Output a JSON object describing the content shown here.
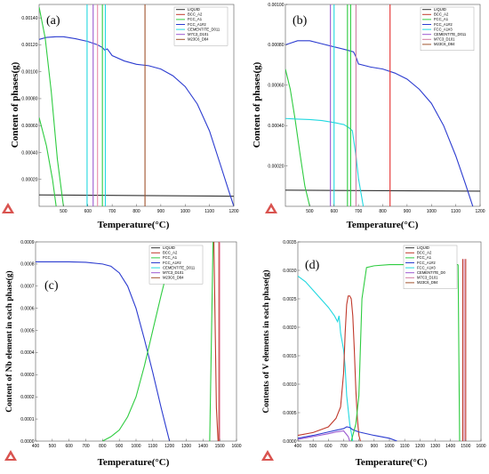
{
  "figure": {
    "background": "#ffffff"
  },
  "chart_data": [
    {
      "id": "a",
      "type": "line",
      "panel_label": "(a)",
      "xlabel": "Temperature(°C)",
      "ylabel": "Content of phases(g)",
      "xlim": [
        400,
        1200
      ],
      "ylim": [
        0,
        0.0015
      ],
      "xticks": [
        "500",
        "600",
        "700",
        "800",
        "900",
        "1000",
        "1100",
        "1200"
      ],
      "xtick_values": [
        500,
        600,
        700,
        800,
        900,
        1000,
        1100,
        1200
      ],
      "yticks": [
        "0.00020",
        "0.00040",
        "0.00060",
        "0.00080",
        "0.00100",
        "0.00120",
        "0.00140"
      ],
      "ytick_values": [
        0.0002,
        0.0004,
        0.0006,
        0.0008,
        0.001,
        0.0012,
        0.0014
      ],
      "legend": [
        {
          "name": "LIQUID",
          "color": "#333333"
        },
        {
          "name": "BCC_A2",
          "color": "#c0392b"
        },
        {
          "name": "FCC_A1",
          "color": "#2ecc40"
        },
        {
          "name": "FCC_A1#2",
          "color": "#2c3cd0"
        },
        {
          "name": "CEMENTITE_D011",
          "color": "#22d8e0"
        },
        {
          "name": "M7C3_D101",
          "color": "#9b59d0"
        },
        {
          "name": "M23C6_D84",
          "color": "#a0522d"
        }
      ],
      "series": [
        {
          "color": "#333333",
          "x": [
            400,
            1200
          ],
          "y": [
            8.5e-05,
            7.5e-05
          ]
        },
        {
          "color": "#2c3cd0",
          "x": [
            400,
            430,
            470,
            500,
            550,
            600,
            640,
            660,
            670,
            680,
            700,
            750,
            800,
            850,
            900,
            950,
            1000,
            1050,
            1100,
            1150,
            1180,
            1200
          ],
          "y": [
            0.00124,
            0.001255,
            0.00126,
            0.00126,
            0.001245,
            0.001225,
            0.0012,
            0.00118,
            0.00116,
            0.00117,
            0.00112,
            0.00108,
            0.001055,
            0.001045,
            0.00102,
            0.00097,
            0.00089,
            0.00076,
            0.00056,
            0.00028,
            0.00011,
            0.0
          ]
        },
        {
          "color": "#2ecc40",
          "x": [
            400,
            425,
            450,
            475,
            500
          ],
          "y": [
            0.00148,
            0.00125,
            0.00085,
            0.00035,
            0.0
          ]
        },
        {
          "color": "#2ecc40",
          "x": [
            400,
            430,
            455,
            470
          ],
          "y": [
            0.00066,
            0.00045,
            0.0002,
            0.0
          ]
        },
        {
          "color": "#2ecc40",
          "x": [
            660,
            660
          ],
          "y": [
            0,
            0.0015
          ]
        },
        {
          "color": "#22d8e0",
          "x": [
            597,
            597
          ],
          "y": [
            0,
            0.0015
          ]
        },
        {
          "color": "#22d8e0",
          "x": [
            672,
            672
          ],
          "y": [
            0,
            0.0015
          ]
        },
        {
          "color": "#9b59d0",
          "x": [
            622,
            622
          ],
          "y": [
            0,
            0.0015
          ]
        },
        {
          "color": "#e88aa8",
          "x": [
            640,
            640
          ],
          "y": [
            0,
            0.0015
          ]
        },
        {
          "color": "#a0522d",
          "x": [
            835,
            835
          ],
          "y": [
            0,
            0.0015
          ]
        }
      ]
    },
    {
      "id": "b",
      "type": "line",
      "panel_label": "(b)",
      "xlabel": "Temperature(°C)",
      "ylabel": "Content of phases(g)",
      "xlim": [
        400,
        1200
      ],
      "ylim": [
        0,
        0.001
      ],
      "xticks": [
        "500",
        "600",
        "700",
        "800",
        "900",
        "1000",
        "1100",
        "1200"
      ],
      "xtick_values": [
        500,
        600,
        700,
        800,
        900,
        1000,
        1100,
        1200
      ],
      "yticks": [
        "0.00020",
        "0.00040",
        "0.00060",
        "0.00080",
        "0.00100"
      ],
      "ytick_values": [
        0.0002,
        0.0004,
        0.0006,
        0.0008,
        0.001
      ],
      "legend": [
        {
          "name": "LIQUID",
          "color": "#333333"
        },
        {
          "name": "BCC_A2",
          "color": "#c0392b"
        },
        {
          "name": "FCC_A1",
          "color": "#2ecc40"
        },
        {
          "name": "FCC_A1#2",
          "color": "#2c3cd0"
        },
        {
          "name": "FCC_A1#3",
          "color": "#22d8e0"
        },
        {
          "name": "CEMENTITE_D011",
          "color": "#9b59d0"
        },
        {
          "name": "M7C3_D101",
          "color": "#d07aa0"
        },
        {
          "name": "M23C6_D84",
          "color": "#a0522d"
        }
      ],
      "series": [
        {
          "color": "#333333",
          "x": [
            400,
            1200
          ],
          "y": [
            8e-05,
            7.5e-05
          ]
        },
        {
          "color": "#2c3cd0",
          "x": [
            400,
            450,
            500,
            550,
            600,
            650,
            680,
            690,
            700,
            750,
            800,
            850,
            900,
            950,
            1000,
            1050,
            1100,
            1140,
            1170
          ],
          "y": [
            0.0008,
            0.00082,
            0.00082,
            0.000805,
            0.00079,
            0.000775,
            0.000765,
            0.00074,
            0.000705,
            0.00069,
            0.00068,
            0.00066,
            0.00063,
            0.00058,
            0.00051,
            0.0004,
            0.00025,
            0.00011,
            0.0
          ]
        },
        {
          "color": "#2ecc40",
          "x": [
            400,
            420,
            440,
            460,
            480,
            500
          ],
          "y": [
            0.00068,
            0.00058,
            0.00043,
            0.00026,
            0.0001,
            0.0
          ]
        },
        {
          "color": "#22d8e0",
          "x": [
            400,
            450,
            500,
            550,
            600,
            640,
            660,
            675,
            690,
            700,
            720
          ],
          "y": [
            0.000435,
            0.000432,
            0.00043,
            0.000425,
            0.000415,
            0.000405,
            0.00039,
            0.000375,
            0.00025,
            0.00014,
            0.0
          ]
        },
        {
          "color": "#2ecc40",
          "x": [
            655,
            655
          ],
          "y": [
            0,
            0.001
          ]
        },
        {
          "color": "#2ecc40",
          "x": [
            668,
            668
          ],
          "y": [
            0,
            0.001
          ]
        },
        {
          "color": "#22d8e0",
          "x": [
            600,
            600
          ],
          "y": [
            0,
            0.001
          ]
        },
        {
          "color": "#9b59d0",
          "x": [
            585,
            585
          ],
          "y": [
            0,
            0.001
          ]
        },
        {
          "color": "#d07aa0",
          "x": [
            690,
            690
          ],
          "y": [
            0,
            0.001
          ]
        },
        {
          "color": "#e53030",
          "x": [
            830,
            830
          ],
          "y": [
            0,
            0.001
          ]
        }
      ]
    },
    {
      "id": "c",
      "type": "line",
      "panel_label": "(c)",
      "xlabel": "Temperature(°C)",
      "ylabel": "Content of Nb element in each phase(g)",
      "xlim": [
        400,
        1600
      ],
      "ylim": [
        0,
        0.0009
      ],
      "xticks": [
        "400",
        "500",
        "600",
        "700",
        "800",
        "900",
        "1000",
        "1100",
        "1200",
        "1300",
        "1400",
        "1500",
        "1600"
      ],
      "xtick_values": [
        400,
        500,
        600,
        700,
        800,
        900,
        1000,
        1100,
        1200,
        1300,
        1400,
        1500,
        1600
      ],
      "yticks": [
        "0.0000",
        "0.0001",
        "0.0002",
        "0.0003",
        "0.0004",
        "0.0005",
        "0.0006",
        "0.0007",
        "0.0008",
        "0.0009"
      ],
      "ytick_values": [
        0,
        0.0001,
        0.0002,
        0.0003,
        0.0004,
        0.0005,
        0.0006,
        0.0007,
        0.0008,
        0.0009
      ],
      "legend": [
        {
          "name": "LIQUID",
          "color": "#333333"
        },
        {
          "name": "BCC_A2",
          "color": "#c0392b"
        },
        {
          "name": "FCC_A1",
          "color": "#2ecc40"
        },
        {
          "name": "FCC_A1#2",
          "color": "#2c3cd0"
        },
        {
          "name": "CEMENTITE_D011",
          "color": "#22d8e0"
        },
        {
          "name": "M7C3_D101",
          "color": "#9b59d0"
        },
        {
          "name": "M23C6_D84",
          "color": "#a0522d"
        }
      ],
      "series": [
        {
          "color": "#2c3cd0",
          "x": [
            400,
            500,
            600,
            700,
            800,
            850,
            900,
            950,
            1000,
            1050,
            1100,
            1150,
            1180,
            1200
          ],
          "y": [
            0.00081,
            0.00081,
            0.00081,
            0.000808,
            0.0008,
            0.00079,
            0.00076,
            0.0007,
            0.0006,
            0.00046,
            0.00031,
            0.00015,
            6e-05,
            0.0
          ]
        },
        {
          "color": "#2ecc40",
          "x": [
            800,
            850,
            900,
            950,
            1000,
            1050,
            1100,
            1150,
            1180,
            1200,
            1220,
            1240
          ],
          "y": [
            0.0,
            2e-05,
            5e-05,
            0.00011,
            0.0002,
            0.00034,
            0.0005,
            0.00066,
            0.00075,
            0.0008,
            0.00083,
            0.00086
          ]
        },
        {
          "color": "#2ecc40",
          "x": [
            1440,
            1450,
            1460
          ],
          "y": [
            0.0,
            0.00045,
            0.0009
          ]
        },
        {
          "color": "#c0392b",
          "x": [
            1465,
            1475,
            1480,
            1490
          ],
          "y": [
            0.0009,
            0.0004,
            0.00015,
            0.0
          ]
        },
        {
          "color": "#c0392b",
          "x": [
            1495,
            1495
          ],
          "y": [
            0,
            0.0009
          ]
        },
        {
          "color": "#e88aa8",
          "x": [
            1500,
            1500
          ],
          "y": [
            0,
            0.0009
          ]
        }
      ]
    },
    {
      "id": "d",
      "type": "line",
      "panel_label": "(d)",
      "xlabel": "Temperature(°C)",
      "ylabel": "Contents of V elements in each phase(g)",
      "xlim": [
        400,
        1600
      ],
      "ylim": [
        0,
        0.0035
      ],
      "xticks": [
        "400",
        "500",
        "600",
        "700",
        "800",
        "900",
        "1000",
        "1100",
        "1200",
        "1300",
        "1400",
        "1500",
        "1600"
      ],
      "xtick_values": [
        400,
        500,
        600,
        700,
        800,
        900,
        1000,
        1100,
        1200,
        1300,
        1400,
        1500,
        1600
      ],
      "yticks": [
        "0.0000",
        "0.0005",
        "0.0010",
        "0.0015",
        "0.0020",
        "0.0025",
        "0.0030",
        "0.0035"
      ],
      "ytick_values": [
        0,
        0.0005,
        0.001,
        0.0015,
        0.002,
        0.0025,
        0.003,
        0.0035
      ],
      "legend": [
        {
          "name": "LIQUID",
          "color": "#333333"
        },
        {
          "name": "BCC_A2",
          "color": "#c0392b"
        },
        {
          "name": "FCC_A1",
          "color": "#2ecc40"
        },
        {
          "name": "FCC_A1#2",
          "color": "#2c3cd0"
        },
        {
          "name": "FCC_A1#3",
          "color": "#22d8e0"
        },
        {
          "name": "CEMENTITE_D0",
          "color": "#9b59d0"
        },
        {
          "name": "M7C3_D101",
          "color": "#d07aa0"
        },
        {
          "name": "M23C6_D84",
          "color": "#a0522d"
        }
      ],
      "series": [
        {
          "color": "#22d8e0",
          "x": [
            400,
            450,
            500,
            550,
            600,
            640,
            660,
            670,
            680,
            690,
            700,
            710,
            720,
            740,
            760
          ],
          "y": [
            0.0029,
            0.0028,
            0.00265,
            0.0025,
            0.00235,
            0.0022,
            0.0021,
            0.0022,
            0.0019,
            0.00175,
            0.0016,
            0.0013,
            0.0008,
            0.0003,
            0.0
          ]
        },
        {
          "color": "#c0392b",
          "x": [
            400,
            500,
            600,
            650,
            680,
            700,
            710,
            720,
            730,
            740,
            750,
            760,
            770,
            780,
            790,
            800,
            810
          ],
          "y": [
            0.0001,
            0.00015,
            0.00025,
            0.0004,
            0.0006,
            0.0012,
            0.0019,
            0.0024,
            0.00255,
            0.00255,
            0.0025,
            0.0022,
            0.0016,
            0.0009,
            0.0004,
            0.0001,
            0.0
          ]
        },
        {
          "color": "#2c3cd0",
          "x": [
            400,
            500,
            600,
            650,
            700,
            720,
            740,
            760,
            800,
            900,
            1000,
            1050
          ],
          "y": [
            5e-05,
            0.0001,
            0.00016,
            0.00019,
            0.00022,
            0.00025,
            0.00024,
            0.0002,
            0.00016,
            0.0001,
            5e-05,
            0.0
          ]
        },
        {
          "color": "#9b59d0",
          "x": [
            400,
            500,
            600,
            650,
            700,
            730,
            740
          ],
          "y": [
            3e-05,
            8e-05,
            0.00013,
            0.00016,
            0.00018,
            8e-05,
            0.0
          ]
        },
        {
          "color": "#2ecc40",
          "x": [
            750,
            780,
            800,
            820,
            850,
            900,
            1000,
            1100,
            1200,
            1300,
            1400,
            1450
          ],
          "y": [
            0.0,
            0.0003,
            0.0008,
            0.0025,
            0.00305,
            0.00308,
            0.0031,
            0.0031,
            0.0031,
            0.0031,
            0.0031,
            0.0031
          ]
        },
        {
          "color": "#2ecc40",
          "x": [
            1450,
            1455,
            1460
          ],
          "y": [
            0.0031,
            0.0015,
            0.0
          ]
        },
        {
          "color": "#c0392b",
          "x": [
            1480,
            1480
          ],
          "y": [
            0,
            0.0032
          ]
        },
        {
          "color": "#c0392b",
          "x": [
            1500,
            1500
          ],
          "y": [
            0,
            0.0032
          ]
        },
        {
          "color": "#d07aa0",
          "x": [
            1490,
            1490
          ],
          "y": [
            0,
            0.0032
          ]
        }
      ]
    }
  ]
}
